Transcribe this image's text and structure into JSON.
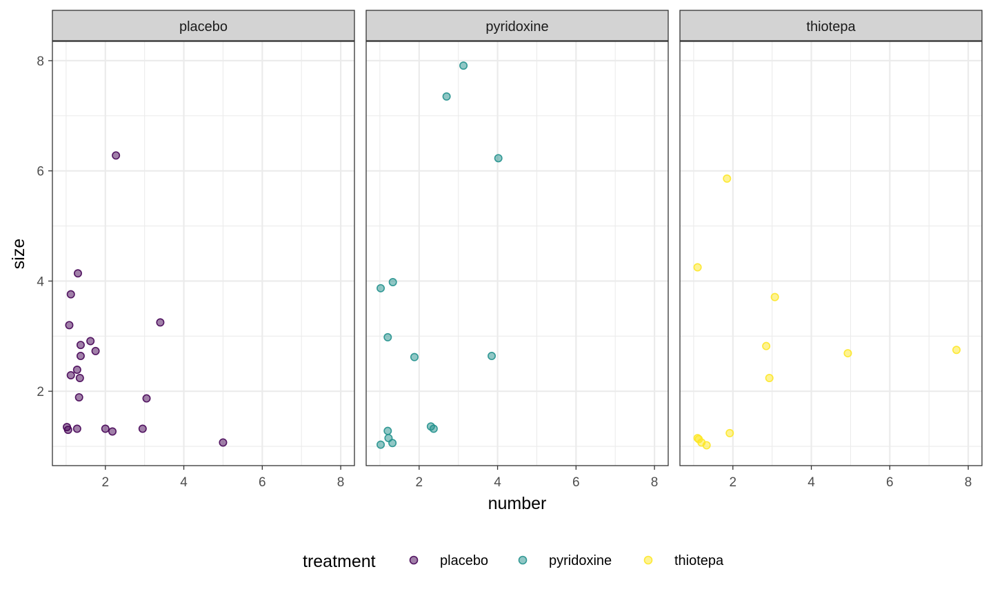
{
  "chart_data": {
    "type": "scatter",
    "xlabel": "number",
    "ylabel": "size",
    "xlim": [
      0.65,
      8.35
    ],
    "ylim": [
      0.65,
      8.35
    ],
    "x_ticks": [
      2,
      4,
      6,
      8
    ],
    "y_ticks": [
      2,
      4,
      6,
      8
    ],
    "grid": true,
    "facet_by": "treatment",
    "legend": {
      "title": "treatment",
      "position": "bottom"
    },
    "point_alpha": 0.5,
    "series": [
      {
        "name": "placebo",
        "color": "#440154",
        "points": [
          [
            1.02,
            1.35
          ],
          [
            1.05,
            1.3
          ],
          [
            1.28,
            1.32
          ],
          [
            2.0,
            1.32
          ],
          [
            2.18,
            1.27
          ],
          [
            2.95,
            1.32
          ],
          [
            5.0,
            1.07
          ],
          [
            1.33,
            1.89
          ],
          [
            3.05,
            1.87
          ],
          [
            1.12,
            2.29
          ],
          [
            1.35,
            2.24
          ],
          [
            1.28,
            2.39
          ],
          [
            1.37,
            2.64
          ],
          [
            1.75,
            2.73
          ],
          [
            1.37,
            2.84
          ],
          [
            1.62,
            2.91
          ],
          [
            1.08,
            3.2
          ],
          [
            3.4,
            3.25
          ],
          [
            1.12,
            3.76
          ],
          [
            1.3,
            4.14
          ],
          [
            2.27,
            6.28
          ]
        ]
      },
      {
        "name": "pyridoxine",
        "color": "#21908C",
        "points": [
          [
            1.02,
            1.03
          ],
          [
            1.32,
            1.06
          ],
          [
            1.22,
            1.15
          ],
          [
            1.2,
            1.28
          ],
          [
            2.3,
            1.36
          ],
          [
            2.37,
            1.32
          ],
          [
            1.88,
            2.62
          ],
          [
            3.85,
            2.64
          ],
          [
            1.2,
            2.98
          ],
          [
            1.02,
            3.87
          ],
          [
            1.33,
            3.98
          ],
          [
            4.02,
            6.23
          ],
          [
            2.7,
            7.35
          ],
          [
            3.13,
            7.91
          ]
        ]
      },
      {
        "name": "thiotepa",
        "color": "#FDE725",
        "points": [
          [
            1.1,
            1.15
          ],
          [
            1.13,
            1.13
          ],
          [
            1.2,
            1.07
          ],
          [
            1.33,
            1.02
          ],
          [
            1.92,
            1.24
          ],
          [
            2.93,
            2.24
          ],
          [
            2.85,
            2.82
          ],
          [
            4.93,
            2.69
          ],
          [
            7.7,
            2.75
          ],
          [
            3.07,
            3.71
          ],
          [
            1.1,
            4.25
          ],
          [
            1.85,
            5.86
          ]
        ]
      }
    ]
  }
}
